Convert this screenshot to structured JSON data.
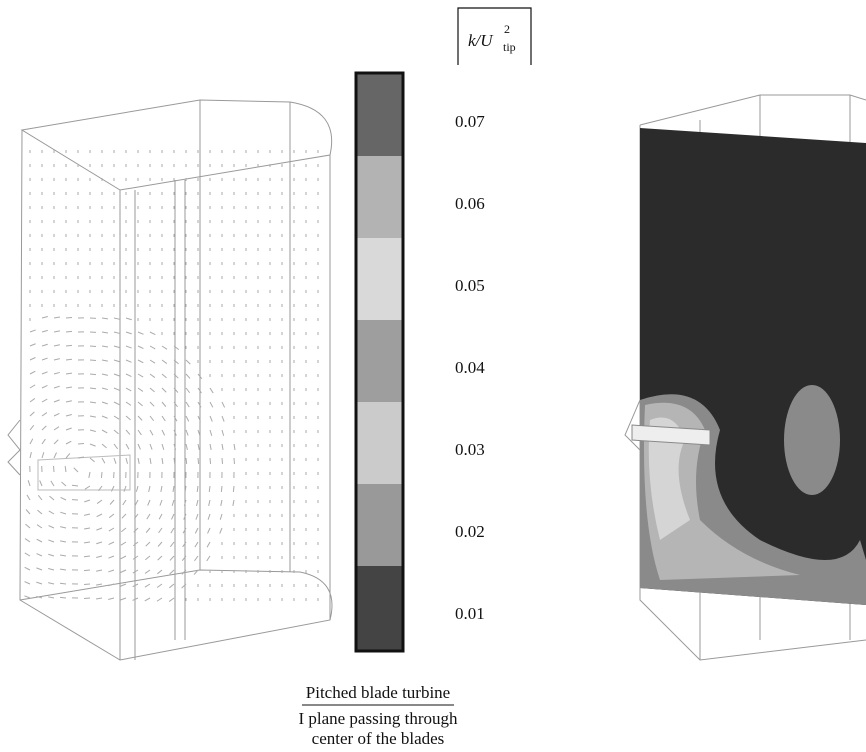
{
  "colorbar": {
    "label": {
      "base": "k/U",
      "superscript": "2",
      "subscript": "tip"
    },
    "ticks": [
      0.07,
      0.06,
      0.05,
      0.04,
      0.03,
      0.02,
      0.01
    ]
  },
  "caption": {
    "title": "Pitched blade turbine",
    "lines": [
      "I plane passing through",
      "center of the blades"
    ]
  }
}
